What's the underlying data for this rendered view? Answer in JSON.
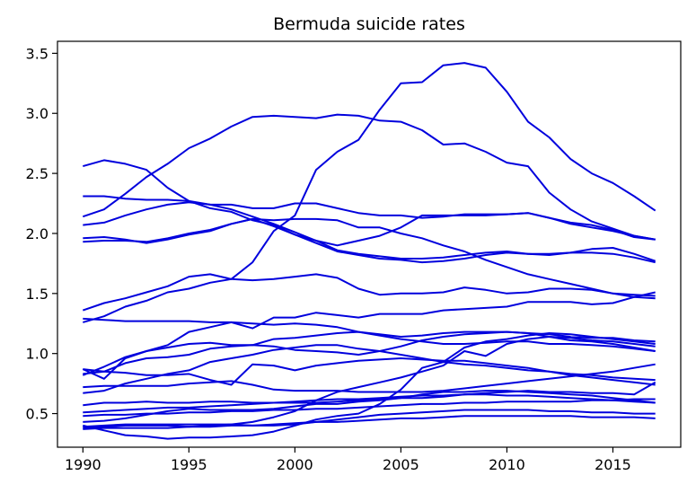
{
  "chart_data": {
    "type": "line",
    "title": "Bermuda suicide rates",
    "xlabel": "",
    "ylabel": "",
    "xlim": [
      1988.8,
      2018.2
    ],
    "ylim": [
      0.22,
      3.6
    ],
    "grid": false,
    "legend": "none",
    "color": "#0000dd",
    "x": [
      1990,
      1991,
      1992,
      1993,
      1994,
      1995,
      1996,
      1997,
      1998,
      1999,
      2000,
      2001,
      2002,
      2003,
      2004,
      2005,
      2006,
      2007,
      2008,
      2009,
      2010,
      2011,
      2012,
      2013,
      2014,
      2015,
      2016,
      2017
    ],
    "x_ticks": [
      1990,
      1995,
      2000,
      2005,
      2010,
      2015
    ],
    "y_ticks": [
      0.5,
      1.0,
      1.5,
      2.0,
      2.5,
      3.0,
      3.5
    ],
    "x_tick_labels": [
      "1990",
      "1995",
      "2000",
      "2005",
      "2010",
      "2015"
    ],
    "y_tick_labels": [
      "0.5",
      "1.0",
      "1.5",
      "2.0",
      "2.5",
      "3.0",
      "3.5"
    ],
    "series": [
      {
        "values": [
          0.38,
          0.39,
          0.4,
          0.4,
          0.4,
          0.39,
          0.4,
          0.41,
          0.43,
          0.47,
          0.52,
          0.61,
          0.68,
          0.72,
          0.76,
          0.8,
          0.85,
          0.9,
          1.02,
          0.98,
          1.08,
          1.12,
          1.14,
          1.13,
          1.11,
          1.1,
          1.08,
          1.06
        ]
      },
      {
        "values": [
          0.4,
          0.36,
          0.32,
          0.31,
          0.29,
          0.3,
          0.3,
          0.31,
          0.32,
          0.35,
          0.4,
          0.45,
          0.48,
          0.5,
          0.58,
          0.7,
          0.88,
          0.93,
          1.05,
          1.1,
          1.12,
          1.15,
          1.17,
          1.16,
          1.14,
          1.12,
          1.1,
          1.08
        ]
      },
      {
        "values": [
          2.14,
          2.2,
          2.33,
          2.47,
          2.58,
          2.71,
          2.79,
          2.89,
          2.97,
          2.98,
          2.97,
          2.96,
          2.99,
          2.98,
          2.94,
          2.93,
          2.86,
          2.74,
          2.75,
          2.68,
          2.59,
          2.56,
          2.34,
          2.2,
          2.1,
          2.04,
          1.98,
          1.95
        ]
      },
      {
        "values": [
          2.56,
          2.61,
          2.58,
          2.53,
          2.38,
          2.27,
          2.21,
          2.18,
          2.11,
          2.07,
          1.99,
          1.94,
          1.9,
          1.94,
          1.98,
          2.05,
          2.15,
          2.15,
          2.15,
          2.15,
          2.16,
          2.17,
          2.13,
          2.09,
          2.07,
          2.03,
          1.97,
          1.95
        ]
      },
      {
        "values": [
          2.31,
          2.31,
          2.29,
          2.28,
          2.28,
          2.27,
          2.24,
          2.24,
          2.21,
          2.21,
          2.25,
          2.25,
          2.21,
          2.17,
          2.15,
          2.15,
          2.13,
          2.14,
          2.16,
          2.16,
          2.16,
          2.17,
          2.13,
          2.08,
          2.05,
          2.02,
          1.98,
          1.95
        ]
      },
      {
        "values": [
          2.07,
          2.09,
          2.15,
          2.2,
          2.24,
          2.26,
          2.24,
          2.2,
          2.14,
          2.08,
          2.01,
          1.94,
          1.86,
          1.83,
          1.81,
          1.79,
          1.79,
          1.8,
          1.82,
          1.84,
          1.85,
          1.83,
          1.83,
          1.84,
          1.84,
          1.83,
          1.8,
          1.76
        ]
      },
      {
        "values": [
          1.96,
          1.97,
          1.95,
          1.92,
          1.95,
          1.99,
          2.02,
          2.08,
          2.12,
          2.06,
          1.99,
          1.92,
          1.85,
          1.82,
          1.79,
          1.78,
          1.76,
          1.77,
          1.79,
          1.82,
          1.84,
          1.83,
          1.82,
          1.84,
          1.87,
          1.88,
          1.83,
          1.77
        ]
      },
      {
        "values": [
          1.93,
          1.94,
          1.94,
          1.93,
          1.96,
          2.0,
          2.03,
          2.08,
          2.12,
          2.11,
          2.12,
          2.12,
          2.11,
          2.05,
          2.05,
          2.0,
          1.96,
          1.9,
          1.85,
          1.78,
          1.72,
          1.66,
          1.62,
          1.58,
          1.54,
          1.5,
          1.47,
          1.46
        ]
      },
      {
        "values": [
          1.36,
          1.42,
          1.46,
          1.51,
          1.56,
          1.64,
          1.66,
          1.62,
          1.61,
          1.62,
          1.64,
          1.66,
          1.63,
          1.54,
          1.49,
          1.5,
          1.5,
          1.51,
          1.55,
          1.53,
          1.5,
          1.51,
          1.54,
          1.54,
          1.53,
          1.5,
          1.49,
          1.48
        ]
      },
      {
        "values": [
          1.26,
          1.31,
          1.39,
          1.44,
          1.51,
          1.54,
          1.59,
          1.62,
          1.76,
          2.02,
          2.15,
          2.53,
          2.68,
          2.78,
          3.03,
          3.25,
          3.26,
          3.4,
          3.42,
          3.38,
          3.18,
          2.93,
          2.8,
          2.62,
          2.5,
          2.42,
          2.31,
          2.19
        ]
      },
      {
        "values": [
          1.29,
          1.28,
          1.27,
          1.27,
          1.27,
          1.27,
          1.26,
          1.26,
          1.25,
          1.24,
          1.25,
          1.24,
          1.22,
          1.18,
          1.16,
          1.14,
          1.15,
          1.17,
          1.18,
          1.18,
          1.18,
          1.17,
          1.14,
          1.11,
          1.1,
          1.08,
          1.05,
          1.02
        ]
      },
      {
        "values": [
          0.87,
          0.79,
          0.96,
          1.02,
          1.07,
          1.18,
          1.22,
          1.26,
          1.21,
          1.3,
          1.3,
          1.34,
          1.32,
          1.3,
          1.33,
          1.33,
          1.33,
          1.36,
          1.37,
          1.38,
          1.39,
          1.43,
          1.43,
          1.43,
          1.41,
          1.42,
          1.47,
          1.51
        ]
      },
      {
        "values": [
          0.82,
          0.89,
          0.97,
          1.02,
          1.05,
          1.08,
          1.09,
          1.07,
          1.07,
          1.12,
          1.13,
          1.15,
          1.17,
          1.18,
          1.15,
          1.12,
          1.1,
          1.08,
          1.08,
          1.09,
          1.1,
          1.1,
          1.08,
          1.08,
          1.07,
          1.06,
          1.04,
          1.02
        ]
      },
      {
        "values": [
          0.87,
          0.85,
          0.84,
          0.82,
          0.82,
          0.83,
          0.78,
          0.74,
          0.91,
          0.9,
          0.86,
          0.9,
          0.92,
          0.94,
          0.95,
          0.96,
          0.95,
          0.94,
          0.94,
          0.92,
          0.9,
          0.88,
          0.85,
          0.82,
          0.8,
          0.78,
          0.76,
          0.74
        ]
      },
      {
        "values": [
          0.83,
          0.85,
          0.92,
          0.96,
          0.97,
          0.99,
          1.04,
          1.06,
          1.07,
          1.06,
          1.03,
          1.02,
          1.01,
          0.99,
          1.02,
          1.06,
          1.11,
          1.14,
          1.16,
          1.17,
          1.18,
          1.17,
          1.16,
          1.14,
          1.13,
          1.13,
          1.11,
          1.1
        ]
      },
      {
        "values": [
          0.67,
          0.69,
          0.75,
          0.79,
          0.83,
          0.86,
          0.93,
          0.96,
          0.99,
          1.03,
          1.05,
          1.07,
          1.07,
          1.04,
          1.02,
          0.99,
          0.96,
          0.93,
          0.91,
          0.9,
          0.88,
          0.86,
          0.85,
          0.83,
          0.82,
          0.8,
          0.79,
          0.78
        ]
      },
      {
        "values": [
          0.72,
          0.73,
          0.73,
          0.73,
          0.73,
          0.75,
          0.76,
          0.77,
          0.74,
          0.7,
          0.69,
          0.69,
          0.69,
          0.68,
          0.68,
          0.68,
          0.68,
          0.69,
          0.71,
          0.73,
          0.75,
          0.77,
          0.79,
          0.81,
          0.83,
          0.85,
          0.88,
          0.91
        ]
      },
      {
        "values": [
          0.57,
          0.59,
          0.59,
          0.6,
          0.59,
          0.59,
          0.6,
          0.6,
          0.59,
          0.59,
          0.59,
          0.59,
          0.6,
          0.61,
          0.62,
          0.63,
          0.63,
          0.64,
          0.66,
          0.67,
          0.68,
          0.69,
          0.68,
          0.68,
          0.67,
          0.67,
          0.66,
          0.76
        ]
      },
      {
        "values": [
          0.51,
          0.52,
          0.53,
          0.54,
          0.55,
          0.55,
          0.56,
          0.57,
          0.58,
          0.59,
          0.6,
          0.61,
          0.62,
          0.62,
          0.63,
          0.64,
          0.65,
          0.65,
          0.66,
          0.66,
          0.65,
          0.65,
          0.64,
          0.63,
          0.62,
          0.61,
          0.6,
          0.59
        ]
      },
      {
        "values": [
          0.43,
          0.44,
          0.46,
          0.49,
          0.52,
          0.54,
          0.53,
          0.53,
          0.53,
          0.54,
          0.56,
          0.58,
          0.58,
          0.6,
          0.61,
          0.63,
          0.66,
          0.68,
          0.68,
          0.69,
          0.69,
          0.68,
          0.67,
          0.66,
          0.65,
          0.63,
          0.61,
          0.59
        ]
      },
      {
        "values": [
          0.48,
          0.49,
          0.49,
          0.5,
          0.5,
          0.51,
          0.51,
          0.52,
          0.52,
          0.53,
          0.53,
          0.54,
          0.54,
          0.55,
          0.56,
          0.57,
          0.58,
          0.58,
          0.59,
          0.59,
          0.6,
          0.6,
          0.6,
          0.6,
          0.61,
          0.61,
          0.62,
          0.62
        ]
      },
      {
        "values": [
          0.39,
          0.4,
          0.41,
          0.41,
          0.41,
          0.41,
          0.41,
          0.41,
          0.4,
          0.4,
          0.41,
          0.43,
          0.45,
          0.47,
          0.49,
          0.5,
          0.51,
          0.52,
          0.53,
          0.53,
          0.53,
          0.53,
          0.52,
          0.52,
          0.51,
          0.51,
          0.5,
          0.5
        ]
      },
      {
        "values": [
          0.37,
          0.38,
          0.38,
          0.38,
          0.38,
          0.39,
          0.39,
          0.4,
          0.4,
          0.41,
          0.42,
          0.43,
          0.43,
          0.44,
          0.45,
          0.46,
          0.46,
          0.47,
          0.48,
          0.48,
          0.48,
          0.48,
          0.48,
          0.48,
          0.47,
          0.47,
          0.47,
          0.46
        ]
      }
    ]
  }
}
